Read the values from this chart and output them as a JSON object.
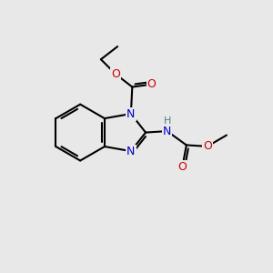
{
  "background_color": "#e8e8e8",
  "bond_color": "#000000",
  "bond_width": 1.5,
  "atom_colors": {
    "N": "#0000cc",
    "O": "#cc0000",
    "H": "#4a8080"
  },
  "font_size": 9
}
